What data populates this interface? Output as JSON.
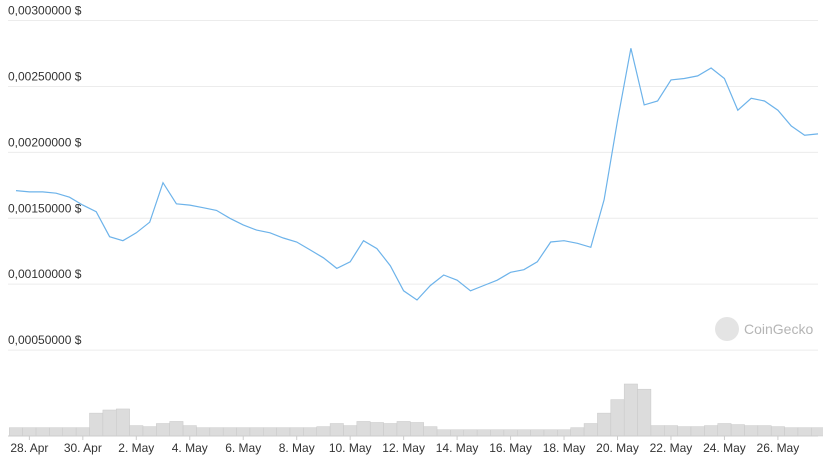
{
  "chart_data": {
    "type": "line",
    "watermark": "CoinGecko",
    "categories": [
      null,
      "28. Apr",
      null,
      null,
      null,
      "30. Apr",
      null,
      null,
      null,
      "2. May",
      null,
      null,
      null,
      "4. May",
      null,
      null,
      null,
      "6. May",
      null,
      null,
      null,
      "8. May",
      null,
      null,
      null,
      "10. May",
      null,
      null,
      null,
      "12. May",
      null,
      null,
      null,
      "14. May",
      null,
      null,
      null,
      "16. May",
      null,
      null,
      null,
      "18. May",
      null,
      null,
      null,
      "20. May",
      null,
      null,
      null,
      "22. May",
      null,
      null,
      null,
      "24. May",
      null,
      null,
      null,
      "26. May",
      null,
      null,
      null
    ],
    "values": [
      0.00171,
      0.0017,
      0.0017,
      0.00169,
      0.00166,
      0.0016,
      0.00155,
      0.00136,
      0.00133,
      0.00139,
      0.00147,
      0.00177,
      0.00161,
      0.0016,
      0.00158,
      0.00156,
      0.0015,
      0.00145,
      0.00141,
      0.00139,
      0.00135,
      0.00132,
      0.00126,
      0.0012,
      0.00112,
      0.00117,
      0.00133,
      0.00127,
      0.00114,
      0.00095,
      0.00088,
      0.00099,
      0.00107,
      0.00103,
      0.00095,
      0.00099,
      0.00103,
      0.00109,
      0.00111,
      0.00117,
      0.00132,
      0.00133,
      0.00131,
      0.00128,
      0.00164,
      0.00224,
      0.00279,
      0.00236,
      0.00239,
      0.00255,
      0.00256,
      0.00258,
      0.00264,
      0.00256,
      0.00232,
      0.00241,
      0.00239,
      0.00232,
      0.0022,
      0.00213,
      0.00214
    ],
    "color": "#6db3ea",
    "volume_values": [
      8,
      8,
      8,
      8,
      8,
      8,
      22,
      25,
      26,
      10,
      9,
      12,
      14,
      10,
      8,
      8,
      8,
      8,
      8,
      8,
      8,
      8,
      8,
      9,
      12,
      10,
      14,
      13,
      12,
      14,
      13,
      9,
      6,
      6,
      6,
      6,
      6,
      6,
      6,
      6,
      6,
      6,
      8,
      12,
      22,
      35,
      50,
      45,
      10,
      10,
      9,
      9,
      10,
      12,
      11,
      10,
      10,
      9,
      8,
      8,
      8
    ],
    "volume_color": "#dcdcdc",
    "ylim": [
      0,
      0.00308
    ],
    "yticks": [
      {
        "value": 0.0005,
        "label": "0,00050000 $"
      },
      {
        "value": 0.001,
        "label": "0,00100000 $"
      },
      {
        "value": 0.0015,
        "label": "0,00150000 $"
      },
      {
        "value": 0.002,
        "label": "0,00200000 $"
      },
      {
        "value": 0.0025,
        "label": "0,00250000 $"
      },
      {
        "value": 0.003,
        "label": "0,00300000 $"
      }
    ],
    "grid": true
  }
}
